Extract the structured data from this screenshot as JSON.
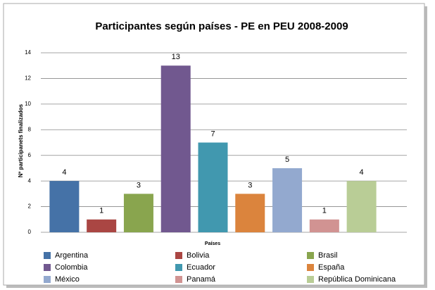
{
  "chart_data": {
    "type": "bar",
    "title": "Participantes según países - PE en PEU 2008-2009",
    "x_label": "Países",
    "y_label": "Nº participanets finalizados",
    "categories": [
      "Argentina",
      "Bolivia",
      "Brasil",
      "Colombia",
      "Ecuador",
      "España",
      "México",
      "Panamá",
      "República Dominicana"
    ],
    "values": [
      4,
      1,
      3,
      13,
      7,
      3,
      5,
      1,
      4
    ],
    "colors": [
      "#4572a7",
      "#aa4643",
      "#89a54e",
      "#71588f",
      "#4198af",
      "#db843d",
      "#93a9cf",
      "#d19392",
      "#b9cd96"
    ],
    "ylim": [
      0,
      14
    ],
    "yticks": [
      0,
      2,
      4,
      6,
      8,
      10,
      12,
      14
    ],
    "grid": true,
    "legend": "bottom"
  }
}
